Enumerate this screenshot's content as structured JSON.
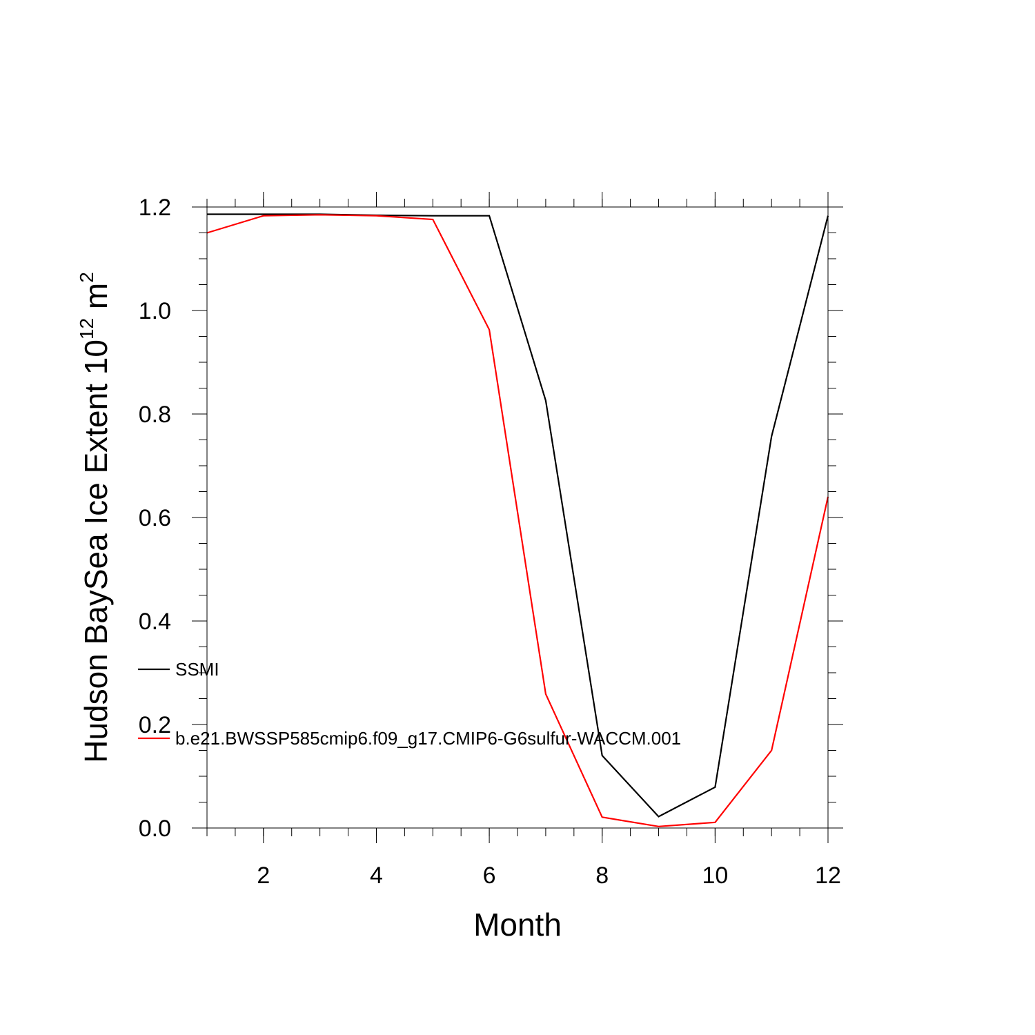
{
  "chart_data": {
    "type": "line",
    "xlabel": "Month",
    "ylabel": {
      "prefix": "Hudson BaySea Ice Extent 10",
      "exponent": "12",
      "unit": " m",
      "unit_exponent": "2"
    },
    "xlim": [
      1,
      12
    ],
    "ylim": [
      0,
      1.2
    ],
    "x_ticks": [
      2,
      4,
      6,
      8,
      10,
      12
    ],
    "x_tick_labels": [
      "2",
      "4",
      "6",
      "8",
      "10",
      "12"
    ],
    "y_ticks": [
      0,
      0.2,
      0.4,
      0.6,
      0.8,
      1.0,
      1.2
    ],
    "y_tick_labels": [
      "0.0",
      "0.2",
      "0.4",
      "0.6",
      "0.8",
      "1.0",
      "1.2"
    ],
    "x": [
      1,
      2,
      3,
      4,
      5,
      6,
      7,
      8,
      9,
      10,
      11,
      12
    ],
    "series": [
      {
        "name": "SSMI",
        "color": "#000000",
        "values": [
          1.186,
          1.186,
          1.186,
          1.184,
          1.183,
          1.183,
          0.826,
          0.14,
          0.022,
          0.079,
          0.757,
          1.183
        ]
      },
      {
        "name": "b.e21.BWSSP585cmip6.f09_g17.CMIP6-G6sulfur-WACCM.001",
        "color": "#ff0000",
        "values": [
          1.15,
          1.183,
          1.185,
          1.183,
          1.176,
          0.963,
          0.259,
          0.021,
          0.003,
          0.011,
          0.15,
          0.64
        ]
      }
    ],
    "legend_placement": "inside-left",
    "grid": false
  }
}
